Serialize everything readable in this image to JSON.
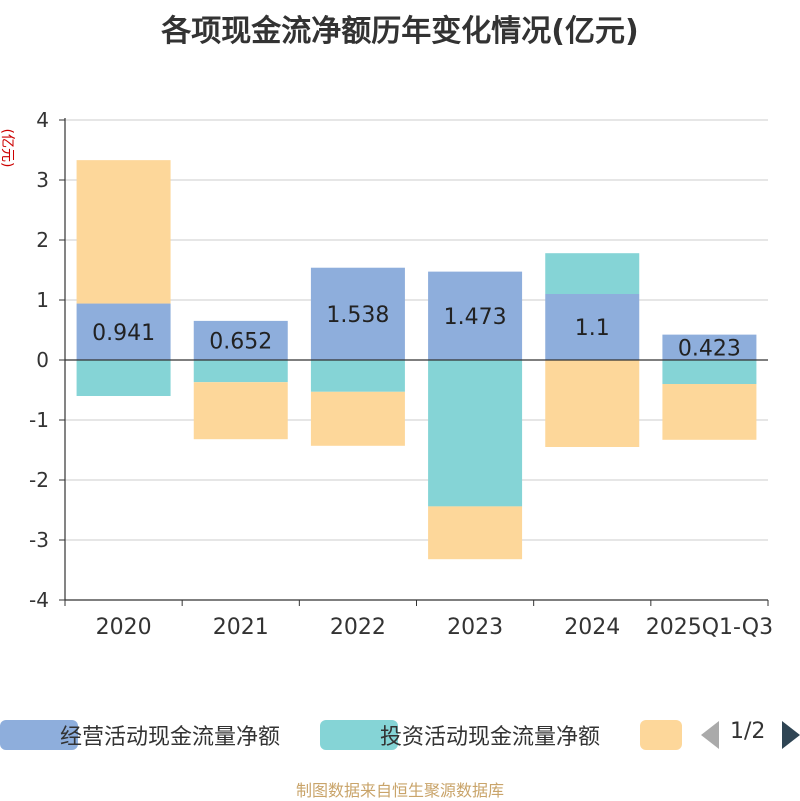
{
  "title": "各项现金流净额历年变化情况(亿元)",
  "source": "制图数据来自恒生聚源数据库",
  "pager": "1/2",
  "chart_data": {
    "type": "bar",
    "stacked": true,
    "ylabel": "(亿元)",
    "ylim": [
      -4,
      4
    ],
    "yticks": [
      4,
      3,
      2,
      1,
      0,
      -1,
      -2,
      -3,
      -4
    ],
    "categories": [
      "2020",
      "2021",
      "2022",
      "2023",
      "2024",
      "2025Q1-Q3"
    ],
    "series": [
      {
        "name": "经营活动现金流量净额",
        "color": "#8eaedc",
        "values": [
          0.941,
          0.652,
          1.538,
          1.473,
          1.1,
          0.423
        ],
        "labels": [
          "0.941",
          "0.652",
          "1.538",
          "1.473",
          "1.1",
          "0.423"
        ]
      },
      {
        "name": "投资活动现金流量净额",
        "color": "#85d4d6",
        "values": [
          -0.6,
          -0.37,
          -0.53,
          -2.44,
          0.68,
          -0.4
        ]
      },
      {
        "name": "",
        "color": "#fdd79a",
        "values": [
          2.39,
          -0.95,
          -0.9,
          -0.88,
          -1.45,
          -0.93
        ]
      }
    ]
  }
}
